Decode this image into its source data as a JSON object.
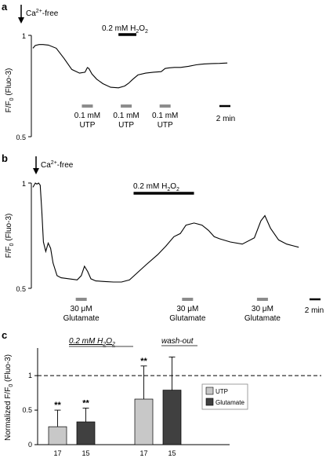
{
  "chart_data": [
    {
      "panel": "a",
      "type": "line",
      "ylabel": "F/F",
      "ylabel_sub": "0",
      "ylabel_tail": " (Fluo-3)",
      "ylim": [
        0.5,
        1.05
      ],
      "yticks": [
        "1",
        "0.5"
      ],
      "xlim": [
        0,
        26
      ],
      "scale_bar": "2 min",
      "annotations": {
        "ca_free": "Ca",
        "ca_free_sup": "2+",
        "ca_free_tail": "-free",
        "h2o2_pre": "0.2 mM H",
        "h2o2_sub1": "2",
        "h2o2_mid": "O",
        "h2o2_sub2": "2"
      },
      "h2o2_interval": [
        11.0,
        13.3
      ],
      "stimuli": [
        {
          "line1": "0.1 mM",
          "line2": "UTP",
          "x": 7.0
        },
        {
          "line1": "0.1 mM",
          "line2": "UTP",
          "x": 12.0
        },
        {
          "line1": "0.1 mM",
          "line2": "UTP",
          "x": 17.0
        }
      ],
      "x": [
        0,
        0.3,
        0.8,
        1.3,
        2.0,
        3.0,
        4.0,
        5.0,
        6.0,
        6.7,
        7.0,
        7.2,
        7.6,
        8.2,
        9.0,
        10.0,
        11.0,
        11.8,
        12.3,
        12.8,
        13.5,
        14.5,
        15.5,
        16.5,
        17.0,
        17.3,
        17.6,
        18.2,
        19.0,
        20.0,
        21.0,
        22.0,
        23.0,
        24.0,
        25.0
      ],
      "values": [
        0.98,
        0.995,
        1.0,
        1.0,
        0.997,
        0.98,
        0.925,
        0.865,
        0.845,
        0.85,
        0.875,
        0.87,
        0.84,
        0.812,
        0.788,
        0.768,
        0.765,
        0.775,
        0.79,
        0.81,
        0.835,
        0.845,
        0.85,
        0.853,
        0.87,
        0.872,
        0.874,
        0.876,
        0.876,
        0.882,
        0.89,
        0.895,
        0.897,
        0.898,
        0.9
      ]
    },
    {
      "panel": "b",
      "type": "line",
      "ylabel": "F/F",
      "ylabel_sub": "0",
      "ylabel_tail": " (Fluo-3)",
      "ylim": [
        0.5,
        1.0
      ],
      "yticks": [
        "1",
        "0.5"
      ],
      "xlim": [
        0,
        36
      ],
      "scale_bar": "2 min",
      "annotations": {
        "ca_free": "Ca",
        "ca_free_sup": "2+",
        "ca_free_tail": "-free",
        "h2o2_pre": "0.2 mM H",
        "h2o2_sub1": "2",
        "h2o2_mid": "O",
        "h2o2_sub2": "2"
      },
      "h2o2_interval": [
        12.5,
        20.0
      ],
      "stimuli": [
        {
          "line1": "30 μM",
          "line2": "Glutamate",
          "x": 6.0
        },
        {
          "line1": "30 μM",
          "line2": "Glutamate",
          "x": 19.2
        },
        {
          "line1": "30 μM",
          "line2": "Glutamate",
          "x": 28.5
        }
      ],
      "x": [
        0,
        0.3,
        0.5,
        0.7,
        0.9,
        1.1,
        1.3,
        1.6,
        1.9,
        2.2,
        2.5,
        3.0,
        3.5,
        4.5,
        5.5,
        6.0,
        6.4,
        6.8,
        7.2,
        7.8,
        9.0,
        10.0,
        11.0,
        12.0,
        13.0,
        14.0,
        15.5,
        16.5,
        17.5,
        18.3,
        19.0,
        20.0,
        21.0,
        21.8,
        22.5,
        23.2,
        24.5,
        26.0,
        27.5,
        28.3,
        28.8,
        29.5,
        30.5,
        31.5,
        32.5,
        33.0
      ],
      "values": [
        0.98,
        1.0,
        0.995,
        1.0,
        0.99,
        0.87,
        0.72,
        0.675,
        0.715,
        0.69,
        0.62,
        0.56,
        0.55,
        0.545,
        0.54,
        0.56,
        0.605,
        0.58,
        0.545,
        0.535,
        0.532,
        0.53,
        0.53,
        0.54,
        0.575,
        0.61,
        0.66,
        0.7,
        0.745,
        0.76,
        0.8,
        0.81,
        0.8,
        0.775,
        0.745,
        0.735,
        0.72,
        0.71,
        0.74,
        0.82,
        0.845,
        0.785,
        0.73,
        0.71,
        0.7,
        0.695
      ]
    },
    {
      "panel": "c",
      "type": "bar",
      "ylabel": "Normalized F/F",
      "ylabel_sub": "0",
      "ylabel_tail": " (Fluo-3)",
      "ylim": [
        0,
        1.4
      ],
      "yticks": [
        "0",
        "0.5",
        "1"
      ],
      "reference_line": 1,
      "group_labels": [
        "0.2 mM H",
        "wash-out"
      ],
      "group_label_h2o2_subs": [
        "2",
        "O",
        "2"
      ],
      "legend_position": "center-right",
      "series": [
        {
          "name": "UTP",
          "color": "#c8c8c8",
          "values": [
            0.26,
            0.66
          ],
          "errors": [
            0.24,
            0.48
          ],
          "stars": [
            "**",
            "**"
          ],
          "n": [
            "17",
            "17"
          ]
        },
        {
          "name": "Glutamate",
          "color": "#404040",
          "values": [
            0.33,
            0.79
          ],
          "errors": [
            0.2,
            0.48
          ],
          "stars": [
            "**",
            ""
          ],
          "n": [
            "15",
            "15"
          ]
        }
      ]
    }
  ],
  "panel_letters": [
    "a",
    "b",
    "c"
  ]
}
